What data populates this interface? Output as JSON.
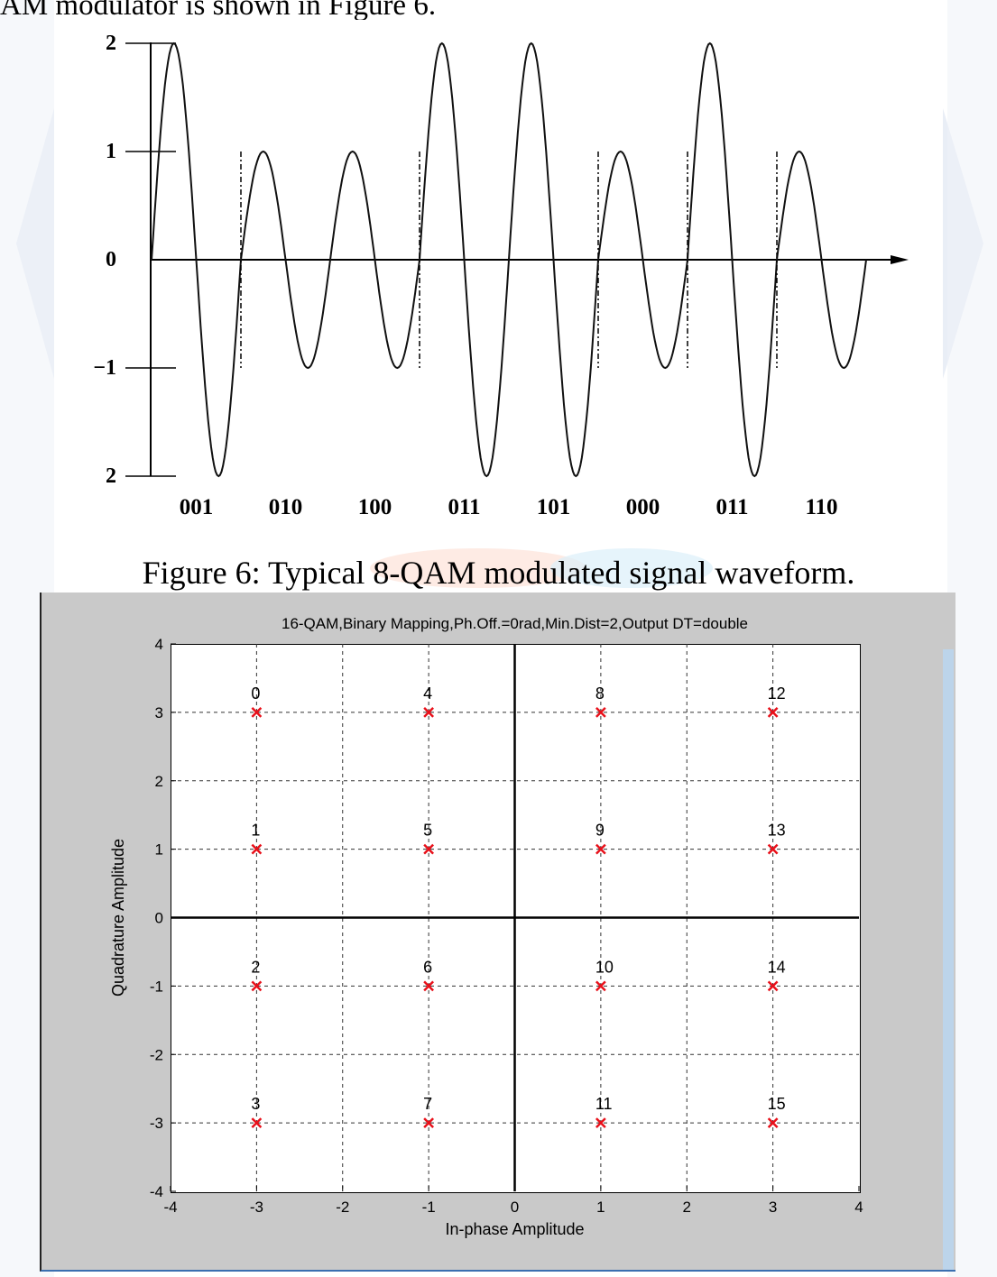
{
  "page": {
    "intro_text": "AM modulator is shown in Figure 6.",
    "figure6_caption": "Figure 6: Typical 8-QAM modulated signal waveform."
  },
  "waveform_figure": {
    "y_tick_labels": [
      "2",
      "1",
      "0",
      "−1",
      "2"
    ],
    "symbol_labels": [
      "001",
      "010",
      "100",
      "011",
      "101",
      "000",
      "011",
      "110"
    ],
    "symbol_amplitudes": [
      2,
      1,
      1,
      2,
      2,
      1,
      2,
      1
    ]
  },
  "chart_data": {
    "type": "scatter",
    "title": "16-QAM,Binary Mapping,Ph.Off.=0rad,Min.Dist=2,Output DT=double",
    "xlabel": "In-phase Amplitude",
    "ylabel": "Quadrature Amplitude",
    "xlim": [
      -4,
      4
    ],
    "ylim": [
      -4,
      4
    ],
    "xticks": [
      "-4",
      "-3",
      "-2",
      "-1",
      "0",
      "1",
      "2",
      "3",
      "4"
    ],
    "yticks": [
      "4",
      "3",
      "2",
      "1",
      "0",
      "-1",
      "-2",
      "-3",
      "-4"
    ],
    "grid": true,
    "marker_color": "#e8101a",
    "points": [
      {
        "label": "0",
        "x": -3,
        "y": 3
      },
      {
        "label": "1",
        "x": -3,
        "y": 1
      },
      {
        "label": "2",
        "x": -3,
        "y": -1
      },
      {
        "label": "3",
        "x": -3,
        "y": -3
      },
      {
        "label": "4",
        "x": -1,
        "y": 3
      },
      {
        "label": "5",
        "x": -1,
        "y": 1
      },
      {
        "label": "6",
        "x": -1,
        "y": -1
      },
      {
        "label": "7",
        "x": -1,
        "y": -3
      },
      {
        "label": "8",
        "x": 1,
        "y": 3
      },
      {
        "label": "9",
        "x": 1,
        "y": 1
      },
      {
        "label": "10",
        "x": 1,
        "y": -1
      },
      {
        "label": "11",
        "x": 1,
        "y": -3
      },
      {
        "label": "12",
        "x": 3,
        "y": 3
      },
      {
        "label": "13",
        "x": 3,
        "y": 1
      },
      {
        "label": "14",
        "x": 3,
        "y": -1
      },
      {
        "label": "15",
        "x": 3,
        "y": -3
      }
    ]
  }
}
